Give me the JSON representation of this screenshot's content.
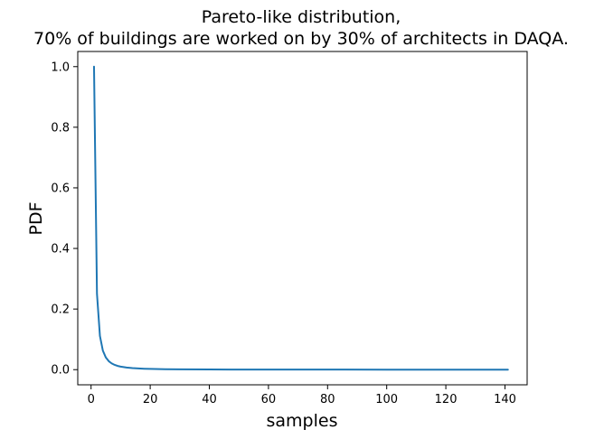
{
  "chart_data": {
    "type": "line",
    "title_lines": [
      "Pareto-like distribution,",
      "70% of buildings are worked on by 30% of architects in DAQA."
    ],
    "xlabel": "samples",
    "ylabel": "PDF",
    "xlim": [
      -4.5,
      147.5
    ],
    "ylim": [
      -0.05,
      1.05
    ],
    "x_ticks": [
      0,
      20,
      40,
      60,
      80,
      100,
      120,
      140
    ],
    "x_tick_labels": [
      "0",
      "20",
      "40",
      "60",
      "80",
      "100",
      "120",
      "140"
    ],
    "y_ticks": [
      0.0,
      0.2,
      0.4,
      0.6,
      0.8,
      1.0
    ],
    "y_tick_labels": [
      "0.0",
      "0.2",
      "0.4",
      "0.6",
      "0.8",
      "1.0"
    ],
    "grid": false,
    "series": [
      {
        "color": "#1f77b4",
        "x": [
          1,
          2,
          3,
          4,
          5,
          6,
          7,
          8,
          9,
          10,
          12,
          14,
          16,
          18,
          20,
          25,
          30,
          40,
          50,
          60,
          80,
          100,
          120,
          141
        ],
        "y": [
          1.0,
          0.25,
          0.111,
          0.0625,
          0.04,
          0.0278,
          0.0204,
          0.0156,
          0.0123,
          0.01,
          0.0069,
          0.0051,
          0.0039,
          0.0031,
          0.0025,
          0.0016,
          0.0011,
          0.0006,
          0.0004,
          0.0003,
          0.0002,
          0.0001,
          0.0001,
          0.0001
        ]
      }
    ]
  }
}
